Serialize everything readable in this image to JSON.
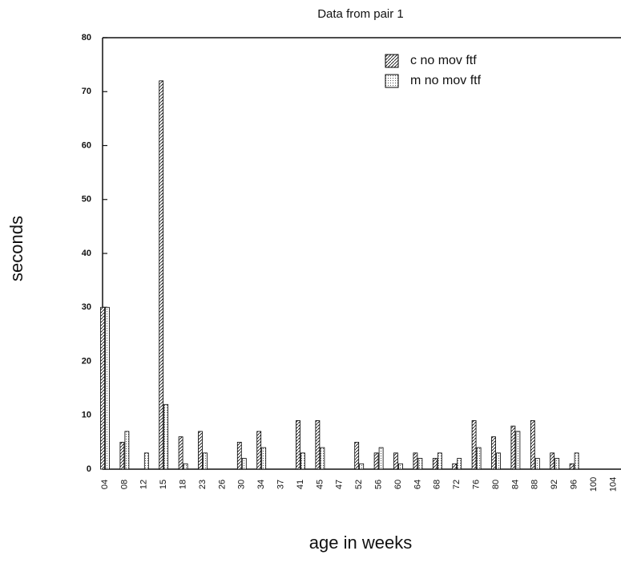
{
  "chart_data": {
    "type": "bar",
    "title": "Data from pair 1",
    "x_label": "age in weeks",
    "y_label": "seconds",
    "categories": [
      "04",
      "08",
      "12",
      "15",
      "18",
      "23",
      "26",
      "30",
      "34",
      "37",
      "41",
      "45",
      "47",
      "52",
      "56",
      "60",
      "64",
      "68",
      "72",
      "76",
      "80",
      "84",
      "88",
      "92",
      "96",
      "100",
      "104"
    ],
    "series": [
      {
        "name": "c no mov ftf",
        "color": "#000000",
        "values": [
          30,
          5,
          0,
          72,
          6,
          7,
          0,
          5,
          7,
          0,
          9,
          9,
          0,
          5,
          3,
          3,
          3,
          2,
          1,
          9,
          6,
          8,
          9,
          3,
          1,
          0,
          0
        ]
      },
      {
        "name": "m no mov ftf",
        "color": "#000000",
        "values": [
          30,
          7,
          3,
          12,
          1,
          3,
          0,
          2,
          4,
          0,
          3,
          4,
          0,
          1,
          4,
          1,
          2,
          3,
          2,
          4,
          3,
          7,
          2,
          2,
          3,
          0,
          0
        ]
      }
    ],
    "ylim": [
      0,
      80
    ],
    "yticks": [
      0,
      10,
      20,
      30,
      40,
      50,
      60,
      70,
      80
    ],
    "grid": false,
    "legend": "top-right"
  }
}
